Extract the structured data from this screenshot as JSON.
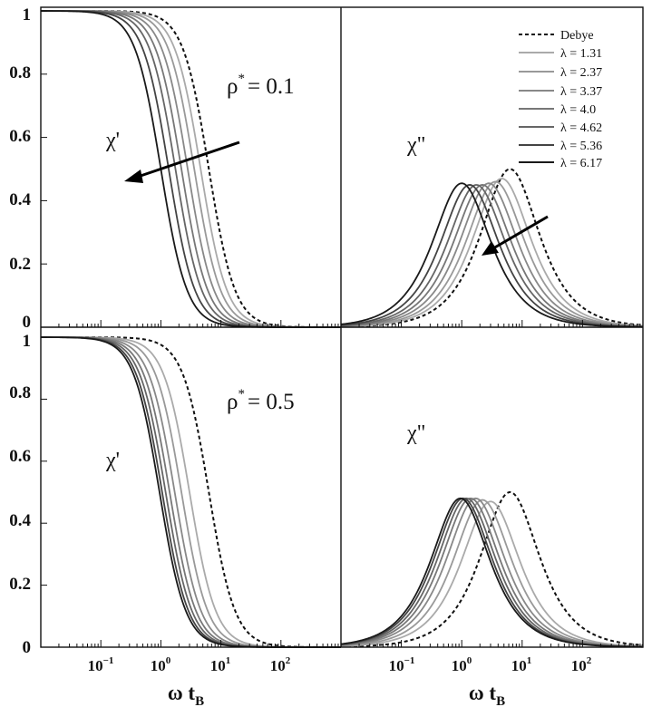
{
  "x_label": {
    "main": "ω t",
    "sub": "B"
  },
  "x_ticks": [
    {
      "base": "10",
      "exp": "−1",
      "value": -1
    },
    {
      "base": "10",
      "exp": "0",
      "value": 0
    },
    {
      "base": "10",
      "exp": "1",
      "value": 1
    },
    {
      "base": "10",
      "exp": "2",
      "value": 2
    }
  ],
  "y_ticks": [
    "0",
    "0.2",
    "0.4",
    "0.6",
    "0.8",
    "1"
  ],
  "legend": {
    "entries": [
      "Debye",
      "λ = 1.31",
      "λ = 2.37",
      "λ = 3.37",
      "λ = 4.0",
      "λ = 4.62",
      "λ = 5.36",
      "λ = 6.17"
    ]
  },
  "colors": {
    "debye": "#111111",
    "series": [
      "#aaaaaa",
      "#999999",
      "#888888",
      "#777777",
      "#666666",
      "#444444",
      "#1a1a1a"
    ]
  },
  "annotations": {
    "rho_top": {
      "text": "ρ",
      "sup": "*",
      "value": "= 0.1"
    },
    "rho_bottom": {
      "text": "ρ",
      "sup": "*",
      "value": "= 0.5"
    },
    "chi_prime": "χ'",
    "chi_double": "χ\""
  },
  "chart_data": [
    {
      "panel": "top-left",
      "type": "line",
      "quantity": "χ'",
      "rho_star": 0.1,
      "x_scale": "log",
      "xlim": [
        0.01,
        1000
      ],
      "ylim": [
        0,
        1
      ],
      "series": [
        {
          "name": "Debye",
          "peak_omega_tB": 6.3,
          "style": "dashed"
        },
        {
          "name": "λ = 1.31",
          "peak_omega_tB": 4.6
        },
        {
          "name": "λ = 2.37",
          "peak_omega_tB": 3.6
        },
        {
          "name": "λ = 3.37",
          "peak_omega_tB": 2.8
        },
        {
          "name": "λ = 4.0",
          "peak_omega_tB": 2.2
        },
        {
          "name": "λ = 4.62",
          "peak_omega_tB": 1.75
        },
        {
          "name": "λ = 5.36",
          "peak_omega_tB": 1.35
        },
        {
          "name": "λ = 6.17",
          "peak_omega_tB": 1.0
        }
      ]
    },
    {
      "panel": "top-right",
      "type": "line",
      "quantity": "χ\"",
      "rho_star": 0.1,
      "x_scale": "log",
      "xlim": [
        0.01,
        1000
      ],
      "ylim": [
        0,
        1
      ],
      "series": [
        {
          "name": "Debye",
          "peak_omega_tB": 6.3,
          "peak_value": 0.5,
          "style": "dashed"
        },
        {
          "name": "λ = 1.31",
          "peak_omega_tB": 4.6,
          "peak_value": 0.47
        },
        {
          "name": "λ = 2.37",
          "peak_omega_tB": 3.6,
          "peak_value": 0.46
        },
        {
          "name": "λ = 3.37",
          "peak_omega_tB": 2.8,
          "peak_value": 0.455
        },
        {
          "name": "λ = 4.0",
          "peak_omega_tB": 2.2,
          "peak_value": 0.45
        },
        {
          "name": "λ = 4.62",
          "peak_omega_tB": 1.75,
          "peak_value": 0.45
        },
        {
          "name": "λ = 5.36",
          "peak_omega_tB": 1.35,
          "peak_value": 0.45
        },
        {
          "name": "λ = 6.17",
          "peak_omega_tB": 1.0,
          "peak_value": 0.455
        }
      ]
    },
    {
      "panel": "bottom-left",
      "type": "line",
      "quantity": "χ'",
      "rho_star": 0.5,
      "x_scale": "log",
      "xlim": [
        0.01,
        1000
      ],
      "ylim": [
        0,
        1
      ],
      "series": [
        {
          "name": "Debye",
          "peak_omega_tB": 6.3,
          "style": "dashed"
        },
        {
          "name": "λ = 1.31",
          "peak_omega_tB": 3.0
        },
        {
          "name": "λ = 2.37",
          "peak_omega_tB": 2.2
        },
        {
          "name": "λ = 3.37",
          "peak_omega_tB": 1.7
        },
        {
          "name": "λ = 4.0",
          "peak_omega_tB": 1.4
        },
        {
          "name": "λ = 4.62",
          "peak_omega_tB": 1.2
        },
        {
          "name": "λ = 5.36",
          "peak_omega_tB": 1.05
        },
        {
          "name": "λ = 6.17",
          "peak_omega_tB": 0.95
        }
      ]
    },
    {
      "panel": "bottom-right",
      "type": "line",
      "quantity": "χ\"",
      "rho_star": 0.5,
      "x_scale": "log",
      "xlim": [
        0.01,
        1000
      ],
      "ylim": [
        0,
        1
      ],
      "series": [
        {
          "name": "Debye",
          "peak_omega_tB": 6.3,
          "peak_value": 0.5,
          "style": "dashed"
        },
        {
          "name": "λ = 1.31",
          "peak_omega_tB": 3.0,
          "peak_value": 0.47
        },
        {
          "name": "λ = 2.37",
          "peak_omega_tB": 2.2,
          "peak_value": 0.475
        },
        {
          "name": "λ = 3.37",
          "peak_omega_tB": 1.7,
          "peak_value": 0.48
        },
        {
          "name": "λ = 4.0",
          "peak_omega_tB": 1.4,
          "peak_value": 0.48
        },
        {
          "name": "λ = 4.62",
          "peak_omega_tB": 1.2,
          "peak_value": 0.48
        },
        {
          "name": "λ = 5.36",
          "peak_omega_tB": 1.05,
          "peak_value": 0.48
        },
        {
          "name": "λ = 6.17",
          "peak_omega_tB": 0.95,
          "peak_value": 0.48
        }
      ]
    }
  ]
}
